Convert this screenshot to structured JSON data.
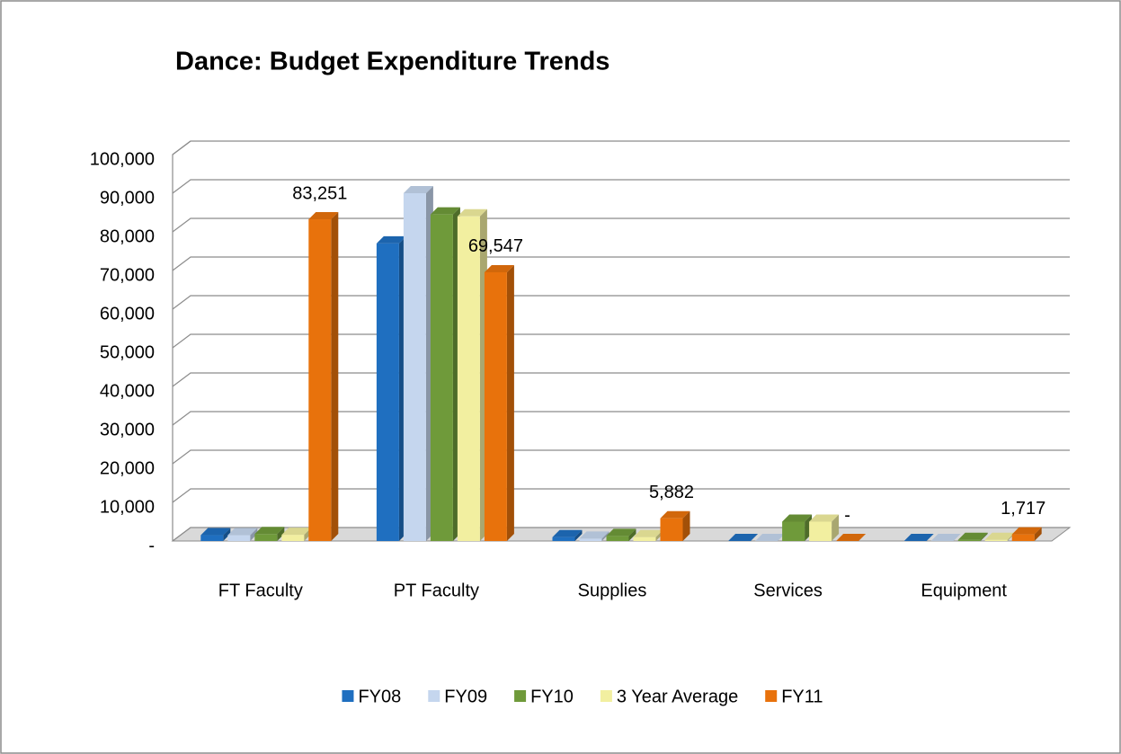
{
  "chart_data": {
    "type": "bar",
    "title": "Dance: Budget Expenditure Trends",
    "categories": [
      "FT Faculty",
      "PT Faculty",
      "Supplies",
      "Services",
      "Equipment"
    ],
    "series": [
      {
        "name": "FY08",
        "color": "#1f6fc0",
        "values": [
          1500,
          77000,
          1000,
          0,
          0
        ]
      },
      {
        "name": "FY09",
        "color": "#c5d6ee",
        "values": [
          1500,
          90000,
          600,
          0,
          0
        ]
      },
      {
        "name": "FY10",
        "color": "#6f9a3a",
        "values": [
          1800,
          84500,
          1300,
          5000,
          300
        ]
      },
      {
        "name": "3 Year Average",
        "color": "#f2efa0",
        "values": [
          1600,
          84000,
          1000,
          5000,
          300
        ]
      },
      {
        "name": "FY11",
        "color": "#e8720c",
        "values": [
          83251,
          69547,
          5882,
          0,
          1717
        ],
        "value_labels": [
          "83,251",
          "69,547",
          "5,882",
          "-",
          "1,717"
        ]
      }
    ],
    "ylim": [
      0,
      100000
    ],
    "yticks": [
      {
        "value": 0,
        "label": "-"
      },
      {
        "value": 10000,
        "label": "10,000"
      },
      {
        "value": 20000,
        "label": "20,000"
      },
      {
        "value": 30000,
        "label": "30,000"
      },
      {
        "value": 40000,
        "label": "40,000"
      },
      {
        "value": 50000,
        "label": "50,000"
      },
      {
        "value": 60000,
        "label": "60,000"
      },
      {
        "value": 70000,
        "label": "70,000"
      },
      {
        "value": 80000,
        "label": "80,000"
      },
      {
        "value": 90000,
        "label": "90,000"
      },
      {
        "value": 100000,
        "label": "100,000"
      }
    ],
    "grid": true
  }
}
